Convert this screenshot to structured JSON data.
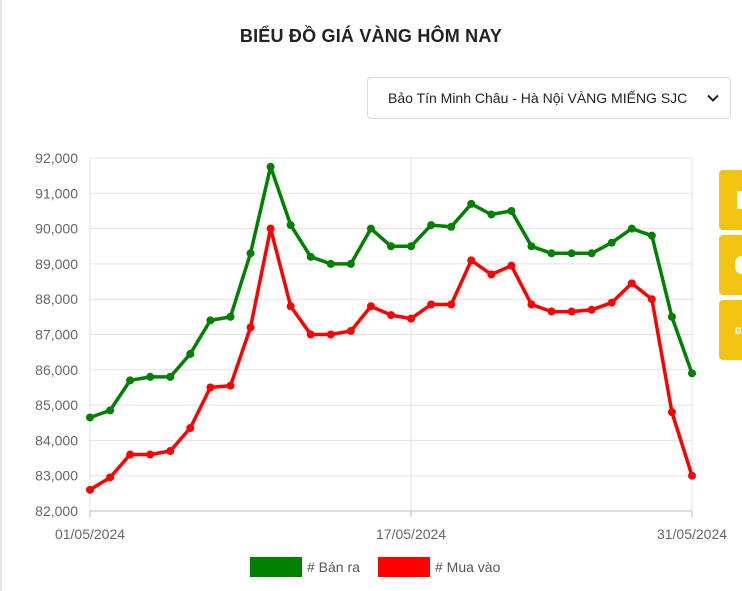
{
  "page": {
    "title": "BIỂU ĐỒ GIÁ VÀNG HÔM NAY",
    "select": {
      "value": "Bảo Tín Minh Châu - Hà Nội VÀNG MIẾNG SJC",
      "icon": "chevron-down-icon"
    }
  },
  "side_tabs": [
    {
      "icon": "yellow-tab-icon"
    },
    {
      "icon": "yellow-tab-icon"
    },
    {
      "label": "Đ"
    }
  ],
  "chart_data": {
    "type": "line",
    "x": [
      "01/05/2024",
      "02/05/2024",
      "03/05/2024",
      "04/05/2024",
      "05/05/2024",
      "06/05/2024",
      "07/05/2024",
      "08/05/2024",
      "09/05/2024",
      "10/05/2024",
      "11/05/2024",
      "12/05/2024",
      "13/05/2024",
      "14/05/2024",
      "15/05/2024",
      "16/05/2024",
      "17/05/2024",
      "18/05/2024",
      "19/05/2024",
      "20/05/2024",
      "21/05/2024",
      "22/05/2024",
      "23/05/2024",
      "24/05/2024",
      "25/05/2024",
      "26/05/2024",
      "27/05/2024",
      "28/05/2024",
      "29/05/2024",
      "30/05/2024",
      "31/05/2024"
    ],
    "x_tick_labels": [
      "01/05/2024",
      "17/05/2024",
      "31/05/2024"
    ],
    "y_ticks": [
      82000,
      83000,
      84000,
      85000,
      86000,
      87000,
      88000,
      89000,
      90000,
      91000,
      92000
    ],
    "y_tick_labels": [
      "82,000",
      "83,000",
      "84,000",
      "85,000",
      "86,000",
      "87,000",
      "88,000",
      "89,000",
      "90,000",
      "91,000",
      "92,000"
    ],
    "ylim": [
      82000,
      92000
    ],
    "grid": true,
    "legend_position": "bottom",
    "series": [
      {
        "name": "# Bán ra",
        "color": "#008000",
        "values": [
          84650,
          84850,
          85700,
          85800,
          85800,
          86450,
          87400,
          87500,
          89300,
          91750,
          90100,
          89200,
          89000,
          89000,
          90000,
          89500,
          89500,
          90100,
          90050,
          90700,
          90400,
          90500,
          89500,
          89300,
          89300,
          89300,
          89600,
          90000,
          89800,
          87500,
          85900
        ]
      },
      {
        "name": "# Mua vào",
        "color": "#ff0000",
        "values": [
          82600,
          82950,
          83600,
          83600,
          83700,
          84350,
          85500,
          85550,
          87200,
          90000,
          87800,
          87000,
          87000,
          87100,
          87800,
          87550,
          87450,
          87850,
          87850,
          89100,
          88700,
          88950,
          87850,
          87650,
          87650,
          87700,
          87900,
          88450,
          88000,
          84800,
          83000
        ]
      }
    ]
  }
}
